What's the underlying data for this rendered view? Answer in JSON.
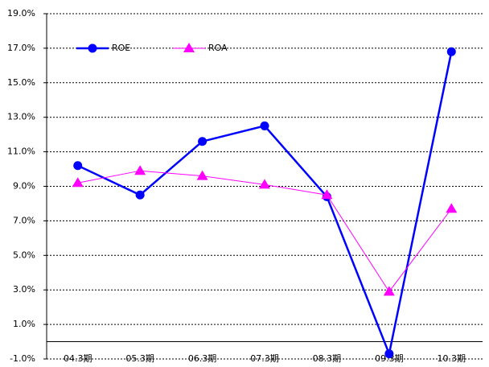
{
  "chart_data": {
    "type": "line",
    "categories": [
      "04.3期",
      "05.3期",
      "06.3期",
      "07.3期",
      "08.3期",
      "09.3期",
      "10.3期"
    ],
    "series": [
      {
        "name": "ROE",
        "color": "#0000ff",
        "values": [
          10.2,
          8.5,
          11.6,
          12.5,
          8.4,
          -0.7,
          16.8
        ]
      },
      {
        "name": "ROA",
        "color": "#ff00ff",
        "values": [
          9.2,
          9.9,
          9.6,
          9.1,
          8.5,
          2.9,
          7.7
        ]
      }
    ],
    "ylim": [
      -1,
      19
    ],
    "yticks": [
      {
        "value": -1,
        "label": "-1.0%"
      },
      {
        "value": 1,
        "label": "1.0%"
      },
      {
        "value": 3,
        "label": "3.0%"
      },
      {
        "value": 5,
        "label": "5.0%"
      },
      {
        "value": 7,
        "label": "7.0%"
      },
      {
        "value": 9,
        "label": "9.0%"
      },
      {
        "value": 11,
        "label": "11.0%"
      },
      {
        "value": 13,
        "label": "13.0%"
      },
      {
        "value": 15,
        "label": "15.0%"
      },
      {
        "value": 17,
        "label": "17.0%"
      },
      {
        "value": 19,
        "label": "19.0%"
      }
    ],
    "grid": true,
    "legend": "top-left"
  }
}
